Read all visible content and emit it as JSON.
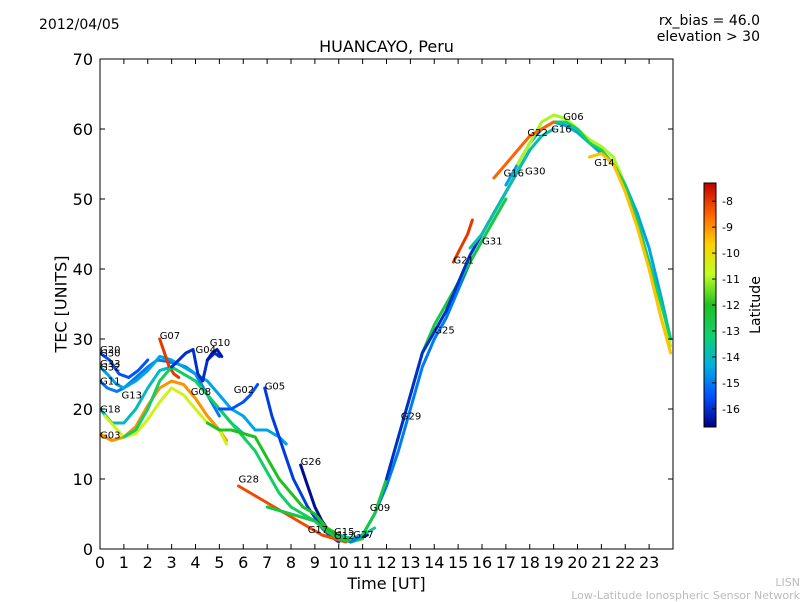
{
  "header": {
    "date": "2012/04/05",
    "title": "HUANCAYO, Peru",
    "rx_bias": "rx_bias = 46.0",
    "elevation": "elevation > 30"
  },
  "credit": {
    "line1": "LISN",
    "line2": "Low-Latitude Ionospheric Sensor Network"
  },
  "chart_data": {
    "type": "line",
    "title": "HUANCAYO, Peru",
    "xlabel": "Time [UT]",
    "ylabel": "TEC [UNITS]",
    "xlim": [
      0,
      24
    ],
    "ylim": [
      0,
      70
    ],
    "xticks": [
      "0",
      "1",
      "2",
      "3",
      "4",
      "5",
      "6",
      "7",
      "8",
      "9",
      "10",
      "11",
      "12",
      "13",
      "14",
      "15",
      "16",
      "17",
      "18",
      "19",
      "20",
      "21",
      "22",
      "23"
    ],
    "yticks": [
      "0",
      "10",
      "20",
      "30",
      "40",
      "50",
      "60",
      "70"
    ],
    "grid": false,
    "colorbar": {
      "label": "Latitude",
      "range": [
        -16.7,
        -7.3
      ],
      "ticks": [
        "-8",
        "-9",
        "-10",
        "-11",
        "-12",
        "-13",
        "-14",
        "-15",
        "-16"
      ],
      "colors": [
        "#00007f",
        "#0050ff",
        "#00b0e0",
        "#10d070",
        "#20c020",
        "#c0ff20",
        "#ffd000",
        "#ff6000",
        "#c00000"
      ]
    },
    "series": [
      {
        "name": "G11",
        "lat": -15.0,
        "x": [
          0.0,
          0.3,
          0.7,
          1.0,
          1.5,
          2.0,
          2.4,
          2.8,
          3.2,
          3.6,
          4.0,
          4.5,
          5.0
        ],
        "y": [
          24,
          23,
          22.5,
          23,
          24.5,
          26,
          27,
          26.8,
          26.5,
          26,
          25,
          22,
          19
        ]
      },
      {
        "name": "G32",
        "lat": -14.5,
        "x": [
          0.0,
          0.3,
          0.7,
          1.0,
          1.5,
          2.0,
          2.5,
          3.0,
          3.5,
          4.0,
          4.5,
          5.0,
          5.5,
          6.0,
          6.5,
          7.0,
          7.5,
          7.8
        ],
        "y": [
          26,
          25,
          23.5,
          23,
          24,
          25.5,
          27.5,
          27,
          26,
          25,
          24,
          22,
          20,
          19,
          17,
          17,
          16,
          15
        ]
      },
      {
        "name": "G30",
        "lat": -15.5,
        "x": [
          0.0,
          0.4,
          0.8,
          1.2,
          1.6,
          2.0
        ],
        "y": [
          28,
          27,
          25,
          24.5,
          25.5,
          27
        ]
      },
      {
        "name": "G03",
        "lat": -9.0,
        "x": [
          0.0,
          0.2,
          0.5,
          1.0,
          1.5,
          2.0,
          2.5,
          3.0,
          3.5,
          4.0,
          4.5,
          5.0,
          5.3
        ],
        "y": [
          16.5,
          16,
          15.5,
          16,
          17.5,
          20.5,
          23,
          24,
          23.5,
          21.5,
          19,
          17,
          15.5
        ]
      },
      {
        "name": "G18",
        "lat": -14.0,
        "x": [
          0.0,
          0.5,
          1.0,
          1.5,
          2.0,
          2.5,
          3.0,
          3.5,
          4.0,
          4.5,
          5.0,
          5.5,
          6.0
        ],
        "y": [
          20,
          18,
          18,
          20,
          23,
          25.5,
          26,
          25,
          24,
          22,
          20,
          18,
          16.5
        ]
      },
      {
        "name": "G13",
        "lat": -10.5,
        "x": [
          0.2,
          0.6,
          1.0,
          1.5,
          2.0,
          2.5,
          3.0,
          3.5,
          4.0,
          4.5,
          5.0,
          5.3
        ],
        "y": [
          19,
          17.5,
          16,
          16.5,
          18.5,
          21,
          23,
          22,
          20,
          18,
          17,
          15
        ]
      },
      {
        "name": "G07",
        "lat": -8.0,
        "x": [
          2.5,
          2.7,
          2.9,
          3.1,
          3.3
        ],
        "y": [
          30,
          28,
          26,
          25,
          24.5
        ]
      },
      {
        "name": "G08",
        "lat": -13.0,
        "x": [
          1.0,
          1.5,
          2.0,
          2.5,
          3.0,
          3.5,
          4.0,
          4.5,
          5.0,
          5.5,
          6.0,
          6.5,
          7.0,
          7.5,
          8.0,
          8.5,
          9.0,
          9.5,
          10.0,
          10.5
        ],
        "y": [
          16,
          17,
          20,
          24,
          26,
          25,
          24,
          22,
          20,
          18,
          16,
          14,
          11,
          8,
          6,
          5,
          4,
          3,
          2,
          1.5
        ]
      },
      {
        "name": "G04",
        "lat": -16.0,
        "x": [
          3.0,
          3.3,
          3.6,
          3.9,
          4.1,
          4.3,
          4.5,
          4.8,
          5.0
        ],
        "y": [
          26,
          27,
          28,
          28.5,
          25,
          24,
          27,
          28,
          27.5
        ]
      },
      {
        "name": "G10",
        "lat": -16.3,
        "x": [
          4.5,
          4.7,
          4.9,
          5.1
        ],
        "y": [
          27,
          28,
          28.5,
          27.5
        ]
      },
      {
        "name": "G02",
        "lat": -15.5,
        "x": [
          5.0,
          5.5,
          6.0,
          6.3,
          6.6
        ],
        "y": [
          20,
          20,
          21,
          22,
          23.5
        ]
      },
      {
        "name": "G05",
        "lat": -15.8,
        "x": [
          6.9,
          7.2,
          7.5,
          7.8,
          8.1,
          8.4,
          8.7,
          9.0,
          9.3,
          9.6,
          10.0
        ],
        "y": [
          23,
          19,
          16,
          13,
          10,
          8,
          6,
          4.5,
          3,
          2,
          1
        ]
      },
      {
        "name": "G28",
        "lat": -8.2,
        "x": [
          5.8,
          6.3,
          6.8,
          7.3,
          7.8,
          8.3,
          8.8,
          9.3,
          9.8,
          10.3
        ],
        "y": [
          9,
          8,
          7,
          6,
          5,
          4,
          3,
          2,
          1.5,
          1
        ]
      },
      {
        "name": "G26",
        "lat": -16.5,
        "x": [
          8.4,
          8.7,
          9.0,
          9.3,
          9.6,
          10.0,
          10.4,
          10.8,
          11.2
        ],
        "y": [
          12,
          9,
          6,
          4,
          2.5,
          2,
          1.5,
          1.5,
          2
        ]
      },
      {
        "name": "G17",
        "lat": -12.0,
        "x": [
          4.5,
          5.0,
          5.5,
          6.0,
          6.5,
          7.0,
          7.5,
          8.0,
          8.5,
          9.0,
          9.5,
          10.0,
          10.5,
          11.0
        ],
        "y": [
          18,
          17,
          17,
          16.5,
          16,
          13,
          10,
          8,
          6,
          5,
          3,
          2,
          1.5,
          1.5
        ]
      },
      {
        "name": "G15",
        "lat": -12.5,
        "x": [
          7.0,
          7.5,
          8.0,
          8.5,
          9.0,
          9.5,
          10.0,
          10.5,
          11.0
        ],
        "y": [
          6,
          5.5,
          5,
          4.5,
          4,
          2.5,
          1.5,
          1,
          1.5
        ]
      },
      {
        "name": "G27",
        "lat": -13.5,
        "x": [
          10.0,
          10.5,
          11.0,
          11.5
        ],
        "y": [
          2,
          1.5,
          2,
          3
        ]
      },
      {
        "name": "G09",
        "lat": -15.0,
        "x": [
          10.5,
          11.0,
          11.5,
          12.0,
          12.5,
          13.0,
          13.5,
          14.0,
          14.5,
          15.0,
          15.5,
          16.0
        ],
        "y": [
          1,
          2,
          5,
          9,
          14,
          20,
          26,
          30,
          33,
          37,
          41,
          44
        ]
      },
      {
        "name": "G29",
        "lat": -12.5,
        "x": [
          11.0,
          11.5,
          12.0,
          12.5,
          13.0,
          13.5,
          14.0,
          14.5,
          15.0,
          15.5,
          16.0,
          16.5,
          17.0
        ],
        "y": [
          2,
          5,
          10,
          16,
          22,
          28,
          32,
          35,
          38,
          41,
          44,
          47,
          50
        ]
      },
      {
        "name": "G25",
        "lat": -16.0,
        "x": [
          12.0,
          12.5,
          13.0,
          13.5,
          14.0,
          14.5,
          15.0,
          15.5,
          16.0,
          16.5,
          17.0,
          17.5,
          18.0
        ],
        "y": [
          10,
          16,
          22,
          28,
          31,
          34,
          38,
          42,
          45,
          48,
          51,
          54,
          57
        ]
      },
      {
        "name": "G21",
        "lat": -8.0,
        "x": [
          14.8,
          15.1,
          15.4,
          15.6
        ],
        "y": [
          41,
          43,
          45,
          47
        ]
      },
      {
        "name": "G31",
        "lat": -13.8,
        "x": [
          15.5,
          16.0,
          16.5,
          17.0,
          17.5,
          18.0,
          18.5,
          19.0
        ],
        "y": [
          43,
          45,
          48,
          51,
          54,
          57,
          59,
          60
        ]
      },
      {
        "name": "G16",
        "lat": -14.5,
        "x": [
          17.0,
          17.5,
          18.0,
          18.5,
          19.0,
          19.5,
          20.0,
          20.5,
          21.0,
          21.5,
          22.0,
          22.5,
          23.0,
          23.5,
          23.9
        ],
        "y": [
          52,
          55,
          58,
          60,
          61,
          60.5,
          59.5,
          58,
          56.5,
          55,
          52,
          48,
          43,
          36,
          30
        ]
      },
      {
        "name": "G22",
        "lat": -11.0,
        "x": [
          17.5,
          18.0,
          18.5,
          19.0,
          19.5,
          20.0,
          20.5,
          21.0,
          21.5,
          22.0,
          22.5,
          23.0,
          23.5,
          23.9
        ],
        "y": [
          55,
          58,
          61,
          62,
          61.5,
          60,
          58.5,
          57.5,
          56,
          52,
          46,
          40,
          33,
          29
        ]
      },
      {
        "name": "G06",
        "lat": -13.0,
        "x": [
          18.5,
          19.0,
          19.5,
          20.0,
          20.5,
          21.0,
          21.5,
          22.0,
          22.5,
          23.0,
          23.5,
          23.9
        ],
        "y": [
          60,
          61,
          61,
          60,
          58,
          57,
          55,
          52,
          47,
          41,
          35,
          30
        ]
      },
      {
        "name": "G14",
        "lat": -9.5,
        "x": [
          20.5,
          21.0,
          21.5,
          22.0,
          22.5,
          23.0,
          23.5,
          23.9
        ],
        "y": [
          56,
          56.5,
          55,
          51,
          46,
          40,
          33,
          28
        ]
      },
      {
        "name": "G20",
        "lat": -8.5,
        "x": [
          16.5,
          17.0,
          17.5,
          18.0,
          18.5,
          19.0
        ],
        "y": [
          53,
          55,
          57,
          59,
          60,
          61
        ]
      }
    ],
    "labels": [
      {
        "text": "G20",
        "x": 0.0,
        "y": 28.0
      },
      {
        "name": "",
        "text": "G30",
        "x": 0.0,
        "y": 27.5
      },
      {
        "text": "G33",
        "x": 0.0,
        "y": 26.0
      },
      {
        "text": "G32",
        "x": 0.0,
        "y": 25.5
      },
      {
        "text": "G11",
        "x": 0.0,
        "y": 23.5
      },
      {
        "text": "G13",
        "x": 0.9,
        "y": 21.5
      },
      {
        "text": "G18",
        "x": 0.0,
        "y": 19.5
      },
      {
        "text": "G03",
        "x": 0.0,
        "y": 15.8
      },
      {
        "text": "G07",
        "x": 2.5,
        "y": 30.0
      },
      {
        "text": "G04",
        "x": 4.0,
        "y": 28.0
      },
      {
        "text": "G10",
        "x": 4.6,
        "y": 29.0
      },
      {
        "text": "G08",
        "x": 3.8,
        "y": 22.0
      },
      {
        "text": "G02",
        "x": 5.6,
        "y": 22.3
      },
      {
        "text": "G05",
        "x": 6.9,
        "y": 22.8
      },
      {
        "text": "G26",
        "x": 8.4,
        "y": 12.0
      },
      {
        "text": "G28",
        "x": 5.8,
        "y": 9.5
      },
      {
        "text": "G17",
        "x": 8.7,
        "y": 2.3
      },
      {
        "text": "G15",
        "x": 9.8,
        "y": 2.0
      },
      {
        "text": "G12",
        "x": 9.8,
        "y": 1.4
      },
      {
        "text": "G27",
        "x": 10.6,
        "y": 1.6
      },
      {
        "text": "G09",
        "x": 11.3,
        "y": 5.4
      },
      {
        "text": "G29",
        "x": 12.6,
        "y": 18.5
      },
      {
        "text": "G25",
        "x": 14.0,
        "y": 30.8
      },
      {
        "text": "G21",
        "x": 14.8,
        "y": 40.8
      },
      {
        "text": "G31",
        "x": 16.0,
        "y": 43.5
      },
      {
        "text": "G16",
        "x": 16.9,
        "y": 53.2
      },
      {
        "text": "G30",
        "x": 17.8,
        "y": 53.5
      },
      {
        "text": "G22",
        "x": 17.9,
        "y": 59.0
      },
      {
        "text": "G16",
        "x": 18.9,
        "y": 59.5
      },
      {
        "text": "G06",
        "x": 19.4,
        "y": 61.3
      },
      {
        "text": "G14",
        "x": 20.7,
        "y": 54.7
      }
    ]
  }
}
